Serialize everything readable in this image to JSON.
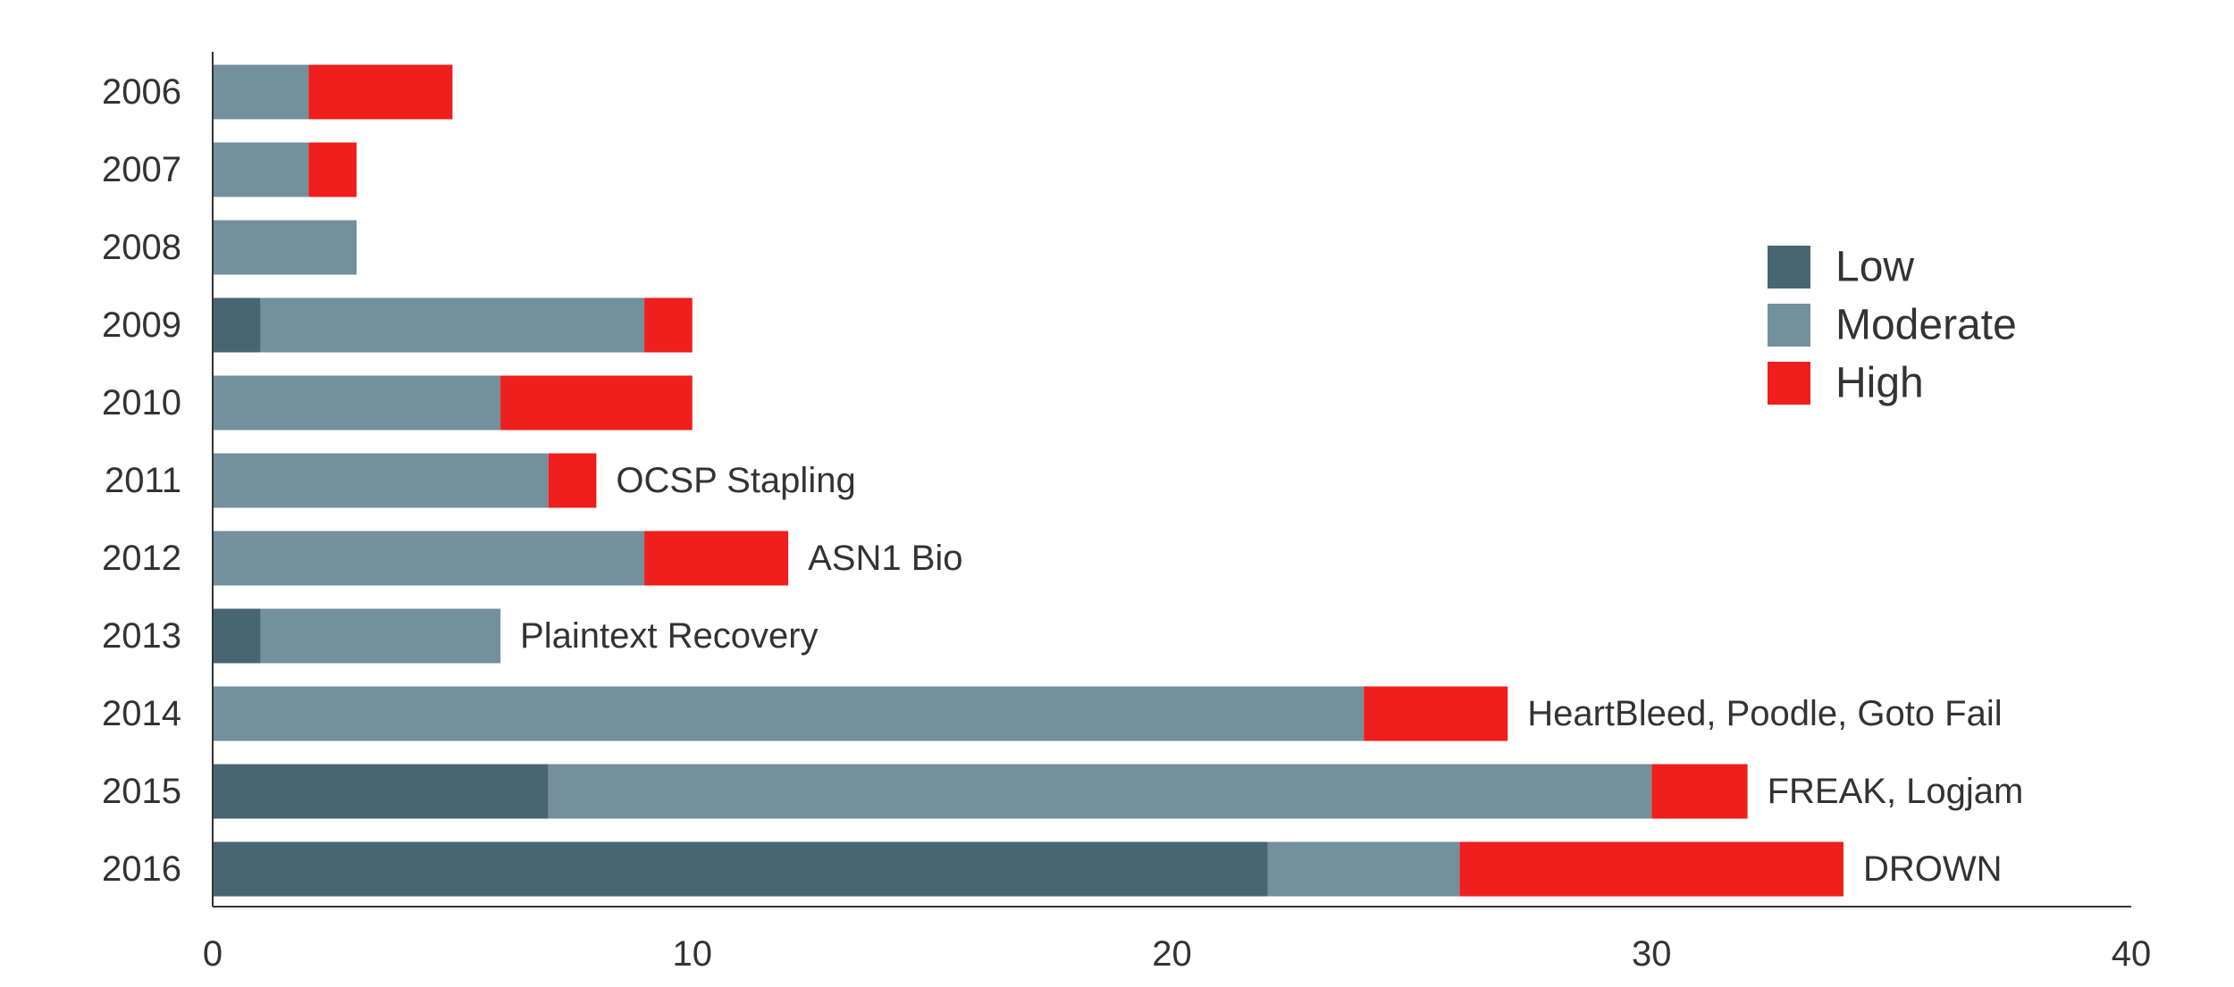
{
  "chart_data": {
    "type": "bar",
    "orientation": "horizontal",
    "stacked": true,
    "title": "",
    "xlabel": "",
    "ylabel": "",
    "xlim": [
      0,
      40
    ],
    "x_ticks": [
      0,
      10,
      20,
      30,
      40
    ],
    "grid": false,
    "legend_position": "right",
    "categories": [
      "2006",
      "2007",
      "2008",
      "2009",
      "2010",
      "2011",
      "2012",
      "2013",
      "2014",
      "2015",
      "2016"
    ],
    "series": [
      {
        "name": "Low",
        "color": "#4a6572",
        "values": [
          0,
          0,
          0,
          1,
          0,
          0,
          0,
          1,
          0,
          7,
          22
        ]
      },
      {
        "name": "Moderate",
        "color": "#74909d",
        "values": [
          2,
          2,
          3,
          8,
          6,
          7,
          9,
          5,
          24,
          23,
          4
        ]
      },
      {
        "name": "High",
        "color": "#ee1f1c",
        "values": [
          3,
          1,
          0,
          1,
          4,
          1,
          3,
          0,
          3,
          2,
          8
        ]
      }
    ],
    "annotations": [
      {
        "category": "2011",
        "text": "OCSP Stapling"
      },
      {
        "category": "2012",
        "text": "ASN1 Bio"
      },
      {
        "category": "2013",
        "text": "Plaintext Recovery"
      },
      {
        "category": "2014",
        "text": "HeartBleed, Poodle, Goto Fail"
      },
      {
        "category": "2015",
        "text": "FREAK, Logjam"
      },
      {
        "category": "2016",
        "text": "DROWN"
      }
    ]
  }
}
